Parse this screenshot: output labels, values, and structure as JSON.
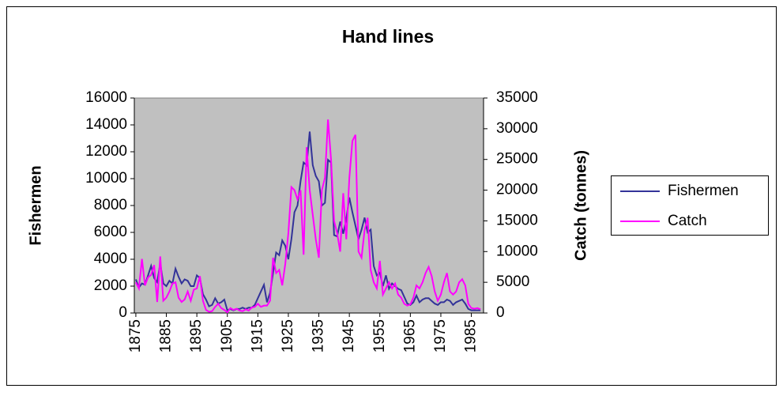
{
  "chart_data": {
    "type": "line",
    "title": "Hand lines",
    "y_label": "Fishermen",
    "y2_label": "Catch (tonnes)",
    "x": [
      1875,
      1876,
      1877,
      1878,
      1879,
      1880,
      1881,
      1882,
      1883,
      1884,
      1885,
      1886,
      1887,
      1888,
      1889,
      1890,
      1891,
      1892,
      1893,
      1894,
      1895,
      1896,
      1897,
      1898,
      1899,
      1900,
      1901,
      1902,
      1903,
      1904,
      1905,
      1906,
      1907,
      1908,
      1909,
      1910,
      1911,
      1912,
      1913,
      1914,
      1915,
      1916,
      1917,
      1918,
      1919,
      1920,
      1921,
      1922,
      1923,
      1924,
      1925,
      1926,
      1927,
      1928,
      1929,
      1930,
      1931,
      1932,
      1933,
      1934,
      1935,
      1936,
      1937,
      1938,
      1939,
      1940,
      1941,
      1942,
      1943,
      1944,
      1945,
      1946,
      1947,
      1948,
      1949,
      1950,
      1951,
      1952,
      1953,
      1954,
      1955,
      1956,
      1957,
      1958,
      1959,
      1960,
      1961,
      1962,
      1963,
      1964,
      1965,
      1966,
      1967,
      1968,
      1969,
      1970,
      1971,
      1972,
      1973,
      1974,
      1975,
      1976,
      1977,
      1978,
      1979,
      1980,
      1981,
      1982,
      1983,
      1984,
      1985,
      1986,
      1987,
      1988
    ],
    "series": [
      {
        "name": "Fishermen",
        "color": "#333399",
        "values": [
          2500,
          1900,
          2200,
          2100,
          2800,
          3500,
          2600,
          2300,
          3700,
          2200,
          2000,
          2400,
          2200,
          3300,
          2700,
          2200,
          2500,
          2400,
          2000,
          2000,
          2800,
          2600,
          1400,
          1000,
          500,
          600,
          1100,
          700,
          800,
          1000,
          200,
          300,
          200,
          300,
          300,
          400,
          300,
          400,
          400,
          600,
          1100,
          1600,
          2100,
          800,
          1500,
          3000,
          4500,
          4300,
          5400,
          5000,
          4000,
          5500,
          7500,
          8000,
          9800,
          11200,
          11000,
          13500,
          11000,
          10200,
          9800,
          8000,
          8200,
          11400,
          11200,
          5800,
          5700,
          6800,
          5900,
          7000,
          8600,
          7500,
          6500,
          5500,
          6200,
          7100,
          6000,
          6200,
          3500,
          2800,
          3000,
          2000,
          2800,
          1800,
          2200,
          2000,
          1800,
          1700,
          1200,
          700,
          600,
          800,
          1300,
          800,
          1000,
          1100,
          1100,
          900,
          700,
          600,
          800,
          800,
          1000,
          900,
          600,
          800,
          900,
          1000,
          700,
          300,
          200,
          200,
          200,
          200
        ]
      },
      {
        "name": "Catch",
        "color": "#ff00ff",
        "axis": "y2",
        "values": [
          5000,
          4000,
          8800,
          4500,
          5800,
          6200,
          7800,
          1800,
          9200,
          2000,
          2500,
          3500,
          4800,
          5000,
          2500,
          1800,
          2200,
          3500,
          2000,
          3800,
          4000,
          6000,
          2000,
          500,
          200,
          300,
          1000,
          1500,
          800,
          500,
          100,
          800,
          500,
          700,
          400,
          300,
          600,
          400,
          900,
          1000,
          1500,
          1000,
          1200,
          1200,
          2000,
          9000,
          6500,
          7000,
          4500,
          8000,
          13000,
          20500,
          20000,
          18500,
          20000,
          9500,
          27000,
          20000,
          16000,
          12000,
          9000,
          20000,
          22000,
          31500,
          25000,
          15000,
          13000,
          10000,
          19500,
          12000,
          22000,
          28000,
          29000,
          10000,
          9000,
          13500,
          15500,
          7000,
          5000,
          4000,
          8500,
          3000,
          4000,
          5000,
          4000,
          4800,
          3000,
          2500,
          1500,
          1200,
          1400,
          2500,
          4500,
          4000,
          5000,
          6500,
          7500,
          6000,
          3500,
          2000,
          3000,
          5000,
          6500,
          3500,
          3000,
          3500,
          5000,
          5500,
          4500,
          1500,
          800,
          700,
          800,
          600
        ]
      }
    ],
    "xlim": [
      1874.5,
      1989
    ],
    "xticks": [
      1875,
      1885,
      1895,
      1905,
      1915,
      1925,
      1935,
      1945,
      1955,
      1965,
      1975,
      1985
    ],
    "ylim": [
      0,
      16000
    ],
    "yticks": [
      0,
      2000,
      4000,
      6000,
      8000,
      10000,
      12000,
      14000,
      16000
    ],
    "y2lim": [
      0,
      35000
    ],
    "y2ticks": [
      0,
      5000,
      10000,
      15000,
      20000,
      25000,
      30000,
      35000
    ],
    "plot_background": "#c0c0c0",
    "legend": "right"
  }
}
